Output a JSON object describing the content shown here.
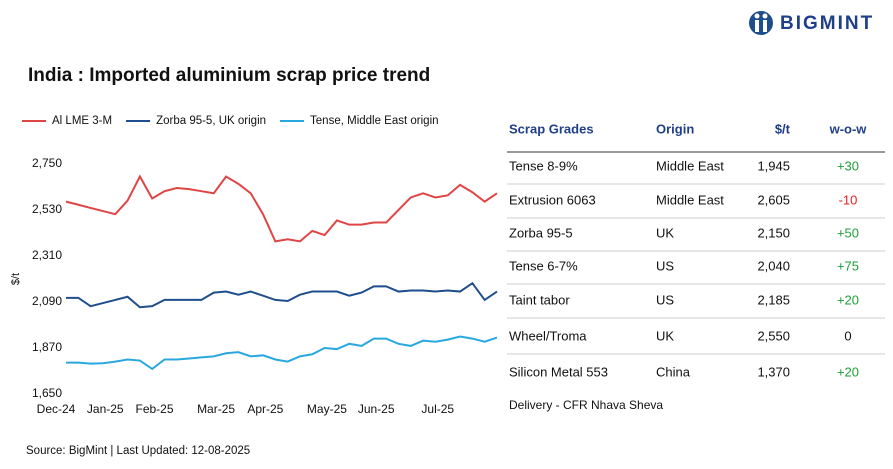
{
  "header": {
    "brand": "BIGMINT"
  },
  "chart_data": {
    "type": "line",
    "title": "India : Imported aluminium scrap price trend",
    "y_label": "$/t",
    "categories": [
      "Dec-24",
      null,
      null,
      null,
      "Jan-25",
      null,
      null,
      null,
      "Feb-25",
      null,
      null,
      null,
      null,
      "Mar-25",
      null,
      null,
      null,
      "Apr-25",
      null,
      null,
      null,
      null,
      "May-25",
      null,
      null,
      null,
      "Jun-25",
      null,
      null,
      null,
      null,
      "Jul-25",
      null,
      null,
      null,
      null
    ],
    "ylim": [
      1650,
      2750
    ],
    "yticks": [
      {
        "value": 1650,
        "label": "1,650"
      },
      {
        "value": 1870,
        "label": "1,870"
      },
      {
        "value": 2090,
        "label": "2,090"
      },
      {
        "value": 2310,
        "label": "2,310"
      },
      {
        "value": 2530,
        "label": "2,530"
      },
      {
        "value": 2750,
        "label": "2,750"
      }
    ],
    "grid": false,
    "series": [
      {
        "name": "Al LME 3-M",
        "color": "#e04545",
        "values": [
          2570,
          2555,
          2540,
          2525,
          2510,
          2575,
          2690,
          2585,
          2620,
          2635,
          2630,
          2620,
          2610,
          2690,
          2655,
          2610,
          2510,
          2380,
          2390,
          2380,
          2430,
          2410,
          2480,
          2460,
          2460,
          2470,
          2470,
          2530,
          2590,
          2610,
          2590,
          2600,
          2650,
          2615,
          2570,
          2610
        ]
      },
      {
        "name": "Zorba 95-5, UK origin",
        "color": "#1f4e8c",
        "values": [
          2110,
          2110,
          2070,
          2085,
          2100,
          2115,
          2065,
          2070,
          2100,
          2100,
          2100,
          2100,
          2135,
          2140,
          2125,
          2140,
          2120,
          2100,
          2095,
          2125,
          2140,
          2140,
          2140,
          2120,
          2135,
          2165,
          2165,
          2140,
          2145,
          2145,
          2140,
          2145,
          2140,
          2180,
          2100,
          2140
        ]
      },
      {
        "name": "Tense, Middle East origin",
        "color": "#29a8e0",
        "values": [
          1800,
          1800,
          1795,
          1797,
          1805,
          1815,
          1810,
          1770,
          1815,
          1815,
          1820,
          1825,
          1830,
          1845,
          1850,
          1830,
          1835,
          1815,
          1805,
          1830,
          1840,
          1870,
          1865,
          1890,
          1880,
          1915,
          1915,
          1890,
          1880,
          1905,
          1900,
          1910,
          1925,
          1915,
          1900,
          1920
        ]
      }
    ]
  },
  "table": {
    "columns": [
      "Scrap Grades",
      "Origin",
      "$/t",
      "w-o-w"
    ],
    "rows": [
      [
        "Tense 8-9%",
        "Middle East",
        "1,945",
        "+30"
      ],
      [
        "Extrusion 6063",
        "Middle East",
        "2,605",
        "-10"
      ],
      [
        "Zorba 95-5",
        "UK",
        "2,150",
        "+50"
      ],
      [
        "Tense 6-7%",
        "US",
        "2,040",
        "+75"
      ],
      [
        "Taint tabor",
        "US",
        "2,185",
        "+20"
      ],
      [
        "Wheel/Troma",
        "UK",
        "2,550",
        "0"
      ],
      [
        "Silicon Metal 553",
        "China",
        "1,370",
        "+20"
      ]
    ],
    "note": "Delivery - CFR Nhava Sheva"
  },
  "footer": {
    "source": "Source: BigMint | Last Updated: 12-08-2025"
  }
}
